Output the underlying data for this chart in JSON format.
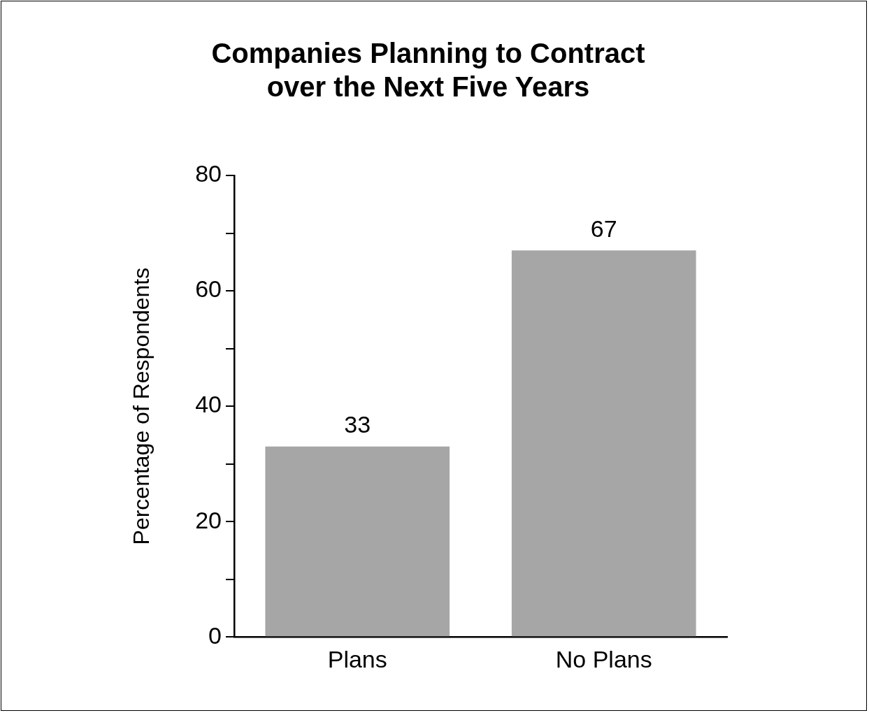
{
  "chart_data": {
    "type": "bar",
    "title": "Companies Planning to Contract\nover the Next Five Years",
    "ylabel": "Percentage of Respondents",
    "categories": [
      "Plans",
      "No Plans"
    ],
    "values": [
      33,
      67
    ],
    "color": "#a6a6a6",
    "ylim": [
      0,
      80
    ],
    "yticks": [
      0,
      {
        "value": 10,
        "label": null
      },
      20,
      {
        "value": 30,
        "label": null
      },
      40,
      {
        "value": 50,
        "label": null
      },
      60,
      {
        "value": 70,
        "label": null
      },
      80
    ],
    "grid": false,
    "legend": false,
    "data_labels": true
  }
}
